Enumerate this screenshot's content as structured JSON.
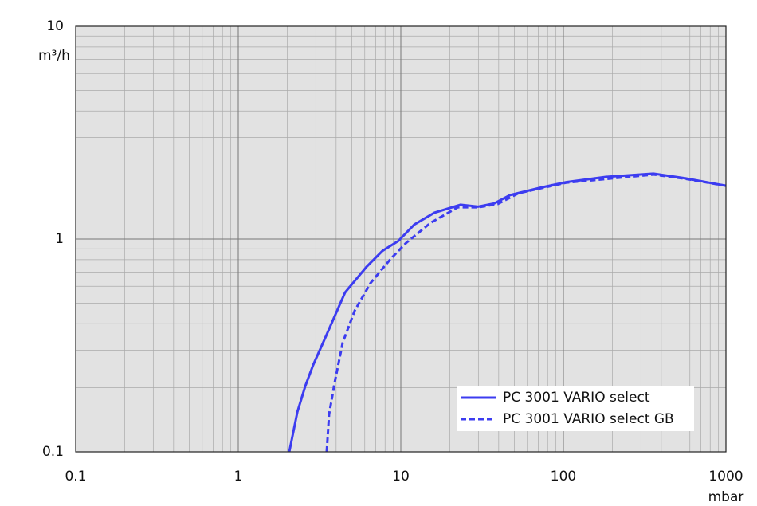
{
  "chart_data": {
    "type": "line",
    "x_label": "mbar",
    "y_label": "m³/h",
    "xlim": [
      0.1,
      1000
    ],
    "ylim": [
      0.1,
      10
    ],
    "xticks": [
      0.1,
      1,
      10,
      100,
      1000
    ],
    "yticks": [
      0.1,
      1,
      10
    ],
    "xscale": "log",
    "yscale": "log",
    "grid": true,
    "legend": "lower right",
    "series": [
      {
        "name": "PC 3001 VARIO select",
        "color": "#3c3cf0",
        "dash": "solid",
        "x": [
          2.06,
          2.31,
          2.58,
          2.89,
          3.5,
          4.54,
          6.15,
          7.71,
          9.66,
          12.1,
          16.1,
          23.3,
          29.9,
          37.5,
          47,
          73.8,
          104,
          182,
          358,
          562,
          1000
        ],
        "values": [
          0.1,
          0.154,
          0.203,
          0.256,
          0.356,
          0.561,
          0.74,
          0.88,
          0.98,
          1.17,
          1.33,
          1.45,
          1.42,
          1.47,
          1.61,
          1.75,
          1.85,
          1.96,
          2.03,
          1.93,
          1.78
        ]
      },
      {
        "name": "PC 3001 VARIO select GB",
        "color": "#3c3cf0",
        "dash": "dashed",
        "x": [
          3.5,
          3.62,
          3.92,
          4.39,
          5.2,
          6.52,
          8.64,
          10.8,
          15.2,
          22.4,
          29.9,
          39.4,
          52.7,
          104,
          358,
          562,
          1000
        ],
        "values": [
          0.1,
          0.15,
          0.212,
          0.326,
          0.46,
          0.622,
          0.805,
          0.96,
          1.19,
          1.41,
          1.41,
          1.46,
          1.64,
          1.84,
          2.01,
          1.92,
          1.78
        ]
      }
    ]
  }
}
